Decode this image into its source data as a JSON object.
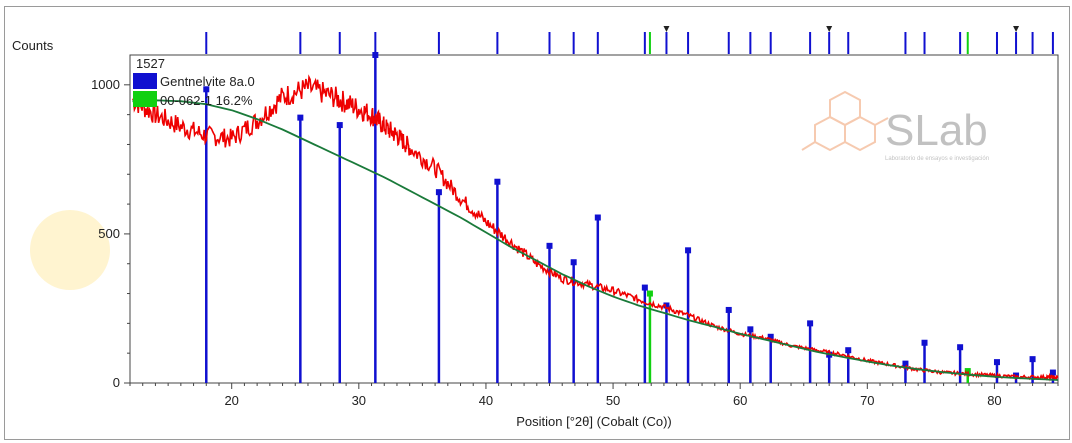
{
  "chart_data": {
    "type": "line",
    "title": "",
    "xlabel": "Position [°2θ] (Cobalt (Co))",
    "ylabel": "Counts",
    "xlim": [
      12,
      85
    ],
    "ylim": [
      0,
      1100
    ],
    "x_ticks": [
      20,
      30,
      40,
      50,
      60,
      70,
      80
    ],
    "y_ticks": [
      0,
      500,
      1000
    ],
    "grid": false,
    "max_count_label": "1527",
    "legend": [
      {
        "label": "Gentnelvite 8a.0",
        "color": "#1010d0"
      },
      {
        "label": "00-062-1 16.2%",
        "color": "#10d010"
      }
    ],
    "watermark": {
      "brand": "SLab",
      "tagline": "Laboratorio de ensayos e investigación"
    },
    "series": [
      {
        "name": "observed",
        "color": "#ee0000",
        "x": [
          12.2,
          14,
          16,
          18,
          20,
          22,
          24,
          26,
          28,
          29.5,
          31,
          32,
          33,
          34,
          36,
          38,
          40,
          42,
          44,
          46,
          48,
          50,
          52,
          54,
          56,
          58,
          60,
          62,
          64,
          66,
          68,
          70,
          72,
          74,
          76,
          78,
          80,
          82,
          84,
          85
        ],
        "y": [
          950,
          900,
          860,
          830,
          820,
          880,
          960,
          990,
          960,
          930,
          900,
          860,
          830,
          790,
          720,
          620,
          540,
          470,
          400,
          350,
          330,
          310,
          280,
          255,
          225,
          190,
          165,
          150,
          125,
          110,
          95,
          75,
          60,
          45,
          35,
          30,
          25,
          20,
          20,
          18
        ]
      },
      {
        "name": "background",
        "color": "#1a7a3a",
        "x": [
          12.2,
          14,
          16,
          18,
          20,
          22,
          24,
          26,
          28,
          30,
          32,
          34,
          36,
          38,
          40,
          42,
          44,
          46,
          48,
          50,
          52,
          54,
          56,
          58,
          60,
          62,
          64,
          66,
          68,
          70,
          72,
          74,
          76,
          78,
          80,
          82,
          84,
          85
        ],
        "y": [
          945,
          948,
          945,
          935,
          915,
          885,
          850,
          810,
          770,
          730,
          690,
          645,
          600,
          555,
          505,
          455,
          410,
          365,
          325,
          290,
          260,
          235,
          210,
          188,
          165,
          145,
          125,
          105,
          88,
          72,
          58,
          46,
          36,
          28,
          21,
          16,
          12,
          10
        ]
      }
    ],
    "reference_peaks": [
      {
        "phase": "Gentnelvite",
        "x": 18.0,
        "y": 985
      },
      {
        "phase": "Gentnelvite",
        "x": 25.4,
        "y": 890
      },
      {
        "phase": "Gentnelvite",
        "x": 28.5,
        "y": 865
      },
      {
        "phase": "Gentnelvite",
        "x": 31.3,
        "y": 1100
      },
      {
        "phase": "Gentnelvite",
        "x": 36.3,
        "y": 640
      },
      {
        "phase": "Gentnelvite",
        "x": 40.9,
        "y": 675
      },
      {
        "phase": "Gentnelvite",
        "x": 45.0,
        "y": 460
      },
      {
        "phase": "Gentnelvite",
        "x": 46.9,
        "y": 405
      },
      {
        "phase": "Gentnelvite",
        "x": 48.8,
        "y": 555
      },
      {
        "phase": "Gentnelvite",
        "x": 52.5,
        "y": 320
      },
      {
        "phase": "Gentnelvite",
        "x": 54.2,
        "y": 260
      },
      {
        "phase": "Gentnelvite",
        "x": 55.9,
        "y": 445
      },
      {
        "phase": "Gentnelvite",
        "x": 59.1,
        "y": 245
      },
      {
        "phase": "Gentnelvite",
        "x": 60.8,
        "y": 180
      },
      {
        "phase": "Gentnelvite",
        "x": 62.4,
        "y": 155
      },
      {
        "phase": "Gentnelvite",
        "x": 65.5,
        "y": 200
      },
      {
        "phase": "Gentnelvite",
        "x": 67.0,
        "y": 95
      },
      {
        "phase": "Gentnelvite",
        "x": 68.5,
        "y": 110
      },
      {
        "phase": "Gentnelvite",
        "x": 73.0,
        "y": 65
      },
      {
        "phase": "Gentnelvite",
        "x": 74.5,
        "y": 135
      },
      {
        "phase": "Gentnelvite",
        "x": 77.3,
        "y": 120
      },
      {
        "phase": "Gentnelvite",
        "x": 80.2,
        "y": 70
      },
      {
        "phase": "Gentnelvite",
        "x": 81.7,
        "y": 25
      },
      {
        "phase": "Gentnelvite",
        "x": 83.0,
        "y": 80
      },
      {
        "phase": "Gentnelvite",
        "x": 84.6,
        "y": 35
      },
      {
        "phase": "00-062",
        "x": 52.9,
        "y": 300
      },
      {
        "phase": "00-062",
        "x": 77.9,
        "y": 40
      }
    ],
    "top_markers": [
      {
        "phase": "Gentnelvite",
        "x": [
          18.0,
          25.4,
          28.5,
          31.3,
          36.3,
          40.9,
          45.0,
          46.9,
          48.8,
          52.5,
          54.2,
          55.9,
          59.1,
          60.8,
          62.4,
          65.5,
          67.0,
          68.5,
          73.0,
          74.5,
          77.3,
          80.2,
          81.7,
          83.0,
          84.6
        ]
      },
      {
        "phase": "00-062",
        "x": [
          52.9,
          77.9
        ]
      }
    ],
    "top_triangles": [
      54.2,
      67.0,
      81.7
    ]
  }
}
